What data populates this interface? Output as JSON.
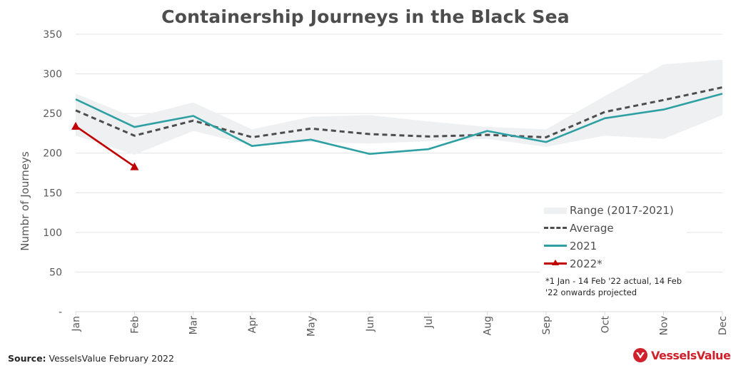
{
  "chart_data": {
    "type": "line",
    "title": "Containership Journeys in the Black Sea",
    "xlabel": "",
    "ylabel": "Numbr of Journeys",
    "categories": [
      "Jan",
      "Feb",
      "Mar",
      "Apr",
      "May",
      "Jun",
      "Jul",
      "Aug",
      "Sep",
      "Oct",
      "Nov",
      "Dec"
    ],
    "yticks": [
      "350",
      "300",
      "250",
      "200",
      "150",
      "100",
      "50",
      "-"
    ],
    "ytick_values": [
      350,
      300,
      250,
      200,
      150,
      100,
      50,
      0
    ],
    "ylim": [
      0,
      350
    ],
    "grid": true,
    "range": {
      "name": "Range (2017-2021)",
      "low": [
        222,
        198,
        228,
        210,
        214,
        212,
        215,
        218,
        208,
        222,
        218,
        248
      ],
      "high": [
        275,
        245,
        264,
        230,
        246,
        248,
        240,
        233,
        230,
        272,
        312,
        318
      ]
    },
    "series": [
      {
        "name": "Average",
        "style": "dashed",
        "color": "#4d4d4d",
        "values": [
          254,
          222,
          241,
          220,
          231,
          224,
          221,
          223,
          220,
          252,
          267,
          283
        ]
      },
      {
        "name": "2021",
        "style": "solid",
        "color": "#2ea0a3",
        "values": [
          268,
          233,
          247,
          209,
          217,
          199,
          205,
          228,
          214,
          244,
          255,
          275
        ]
      },
      {
        "name": "2022*",
        "style": "solid-triangle",
        "color": "#c00000",
        "values": [
          234,
          183,
          null,
          null,
          null,
          null,
          null,
          null,
          null,
          null,
          null,
          null
        ]
      }
    ],
    "legend_position": "bottom-right",
    "note": "*1 Jan - 14 Feb '22 actual, 14 Feb '22 onwards projected"
  },
  "footer": {
    "source_label": "Source:",
    "source_text": " VesselsValue February 2022",
    "brand": "VesselsValue"
  },
  "colors": {
    "range_fill": "#eef0f2",
    "gridline": "#e3e3e3",
    "brand_red": "#d0202c"
  }
}
